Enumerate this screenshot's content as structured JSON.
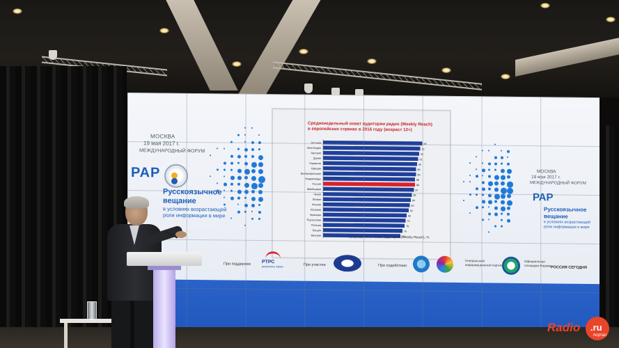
{
  "scene": {
    "description_colors": {
      "wall_bg": "#f4f6fa",
      "brand_blue": "#1b5db8",
      "dot_blue": "#1f7ad8",
      "band_blue": "#2a62c7",
      "accent_red": "#c8232b",
      "podium_stem": "#d6ccff"
    }
  },
  "screen_left": {
    "city": "МОСКВА",
    "date": "19 мая 2017 г.",
    "forum": "МЕЖДУНАРОДНЫЙ ФОРУМ",
    "logo": "РАР",
    "heading_line1": "Русскоязычное",
    "heading_line2": "вещание",
    "sub": "в условиях возрастающей роли информации в мире"
  },
  "screen_right": {
    "city": "МОСКВА",
    "date": "19 мая 2017 г.",
    "forum": "МЕЖДУНАРОДНЫЙ ФОРУМ",
    "logo": "РАР",
    "heading_line1": "Русскоязычное",
    "heading_line2": "вещание",
    "sub": "в условиях возрастающей роли информации в мире"
  },
  "slide": {
    "title_line1": "Средненедельный охват аудитории радио (Weekly Reach)",
    "title_line2": "в европейских странах в 2016 году (возраст 12+)",
    "xlabel": "Среднедельный охват аудитории (Weekly Reach), %"
  },
  "chart_data": {
    "type": "bar",
    "orientation": "horizontal",
    "title": "Среднедельный охват аудитории радио (Weekly Reach) в европейских странах в 2016 году (возраст 12+)",
    "xlabel": "Среднедельный охват аудитории (Weekly Reach), %",
    "categories": [
      "Эстония",
      "Финляндия",
      "Австрия",
      "Дания",
      "Норвегия",
      "Швеция",
      "Великобритания",
      "Нидерланды",
      "Россия",
      "Швейцария",
      "Чехия",
      "Латвия",
      "Италия",
      "Испания",
      "Франция",
      "Португалия",
      "Польша",
      "Греция",
      "Венгрия"
    ],
    "values": [
      95,
      93,
      92,
      91,
      90,
      89,
      89,
      88,
      88,
      87,
      85,
      84,
      83,
      82,
      80,
      79,
      78,
      76,
      74
    ],
    "highlight_category": "Россия",
    "colors": {
      "bar": "#1f3f9a",
      "highlight": "#d8222b"
    },
    "xlim": [
      0,
      100
    ]
  },
  "sponsors": {
    "support_label": "При поддержке",
    "rtrs": "РТРС",
    "rtrs_sub": "дыханием в эфире",
    "participation_label": "При участии",
    "assistance_label": "При содействии",
    "general_partner": "Генеральный информационный партнер",
    "official_platform": "Официальная площадка Форума",
    "russia_today": "РОССИЯ СЕГОДНЯ"
  },
  "watermark": {
    "radio": "Radio",
    "ru": ".ru",
    "portal": "портал"
  }
}
